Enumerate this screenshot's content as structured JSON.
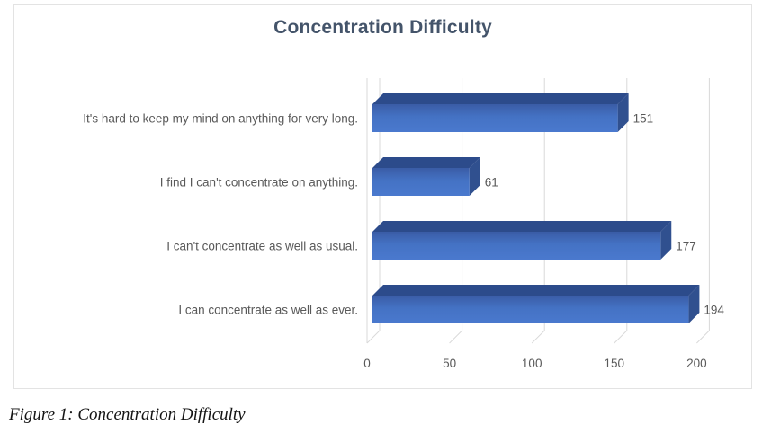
{
  "figure": {
    "caption": "Figure 1: Concentration Difficulty"
  },
  "chart_data": {
    "type": "bar",
    "orientation": "horizontal",
    "style": "3d",
    "title": "Concentration Difficulty",
    "categories": [
      "It's hard to keep my mind on anything for very long.",
      "I find I can't concentrate on anything.",
      "I can't concentrate as well as usual.",
      "I can concentrate as well as ever."
    ],
    "values": [
      151,
      61,
      177,
      194
    ],
    "data_labels": [
      "151",
      "61",
      "177",
      "194"
    ],
    "xlabel": "",
    "ylabel": "",
    "xlim": [
      0,
      200
    ],
    "x_ticks": [
      0,
      50,
      100,
      150,
      200
    ],
    "grid": true,
    "legend": false,
    "colors": {
      "bar_front": "#4472C4",
      "bar_front_dark": "#3A5CA6",
      "bar_front_light": "#4A79CE",
      "bar_top": "#2C4B8B",
      "bar_side": "#30508F",
      "title_text": "#44546A",
      "axis_text": "#595959",
      "gridline": "#D9D9D9",
      "chart_border": "#E3E3E3",
      "background": "#FFFFFF"
    }
  }
}
